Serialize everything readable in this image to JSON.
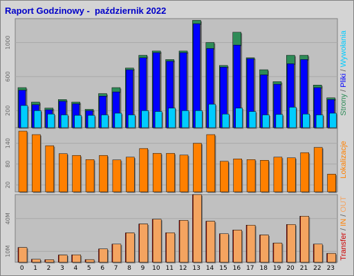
{
  "title": "Raport Godzinowy -  październik 2022",
  "colors": {
    "strony": "#2e8b57",
    "pliki": "#0000ff",
    "wywolania": "#00ccff",
    "lokalizacje": "#ff8000",
    "transfer": "#cc0000",
    "in": "#ff8000",
    "out": "#f4a460"
  },
  "chart_data": [
    {
      "type": "bar",
      "categories": [
        "0",
        "1",
        "2",
        "3",
        "4",
        "5",
        "6",
        "7",
        "8",
        "9",
        "10",
        "11",
        "12",
        "13",
        "14",
        "15",
        "16",
        "17",
        "18",
        "19",
        "20",
        "21",
        "22",
        "23"
      ],
      "yticks": [
        "200",
        "600",
        "1000"
      ],
      "ylim": [
        0,
        1280
      ],
      "right_label": {
        "strony": "Strony",
        "sep1": " / ",
        "pliki": "Pliki",
        "sep2": " / ",
        "wywolania": "Wywołania"
      },
      "series": [
        {
          "name": "Strony",
          "values": [
            470,
            300,
            230,
            330,
            300,
            215,
            400,
            470,
            700,
            850,
            900,
            800,
            900,
            1260,
            1000,
            730,
            1120,
            820,
            680,
            540,
            850,
            850,
            500,
            350
          ]
        },
        {
          "name": "Pliki",
          "values": [
            440,
            270,
            210,
            310,
            280,
            200,
            370,
            420,
            680,
            820,
            880,
            780,
            880,
            1220,
            930,
            710,
            970,
            810,
            620,
            510,
            750,
            800,
            470,
            330
          ]
        },
        {
          "name": "Wywołania",
          "values": [
            260,
            200,
            160,
            150,
            145,
            145,
            150,
            170,
            150,
            200,
            190,
            230,
            200,
            200,
            275,
            160,
            230,
            190,
            150,
            155,
            240,
            160,
            150,
            170
          ]
        }
      ]
    },
    {
      "type": "bar",
      "categories": [
        "0",
        "1",
        "2",
        "3",
        "4",
        "5",
        "6",
        "7",
        "8",
        "9",
        "10",
        "11",
        "12",
        "13",
        "14",
        "15",
        "16",
        "17",
        "18",
        "19",
        "20",
        "21",
        "22",
        "23"
      ],
      "yticks": [
        "20",
        "80",
        "140"
      ],
      "ylim": [
        0,
        185
      ],
      "right_label": {
        "lokalizacje": "Lokalizacje"
      },
      "series": [
        {
          "name": "Lokalizacje",
          "values": [
            175,
            165,
            133,
            110,
            105,
            93,
            105,
            92,
            100,
            125,
            111,
            111,
            106,
            140,
            165,
            88,
            95,
            93,
            91,
            100,
            98,
            113,
            128,
            51
          ]
        }
      ]
    },
    {
      "type": "bar",
      "categories": [
        "0",
        "1",
        "2",
        "3",
        "4",
        "5",
        "6",
        "7",
        "8",
        "9",
        "10",
        "11",
        "12",
        "13",
        "14",
        "15",
        "16",
        "17",
        "18",
        "19",
        "20",
        "21",
        "22",
        "23"
      ],
      "yticks": [
        "10M",
        "40M"
      ],
      "ylim": [
        0,
        62
      ],
      "right_label": {
        "transfer": "Transfer",
        "sep1": " / ",
        "in": "IN",
        "sep2": " / ",
        "out": "OUT"
      },
      "series": [
        {
          "name": "Transfer",
          "values": [
            13.5,
            2.7,
            2.3,
            6.6,
            6.8,
            2.4,
            12.2,
            16.6,
            26.9,
            35.1,
            39.4,
            27.0,
            38.4,
            62.0,
            37.6,
            26.1,
            29.5,
            34.0,
            25.0,
            17.6,
            34.6,
            42.2,
            16.6,
            8.1
          ]
        }
      ]
    }
  ]
}
